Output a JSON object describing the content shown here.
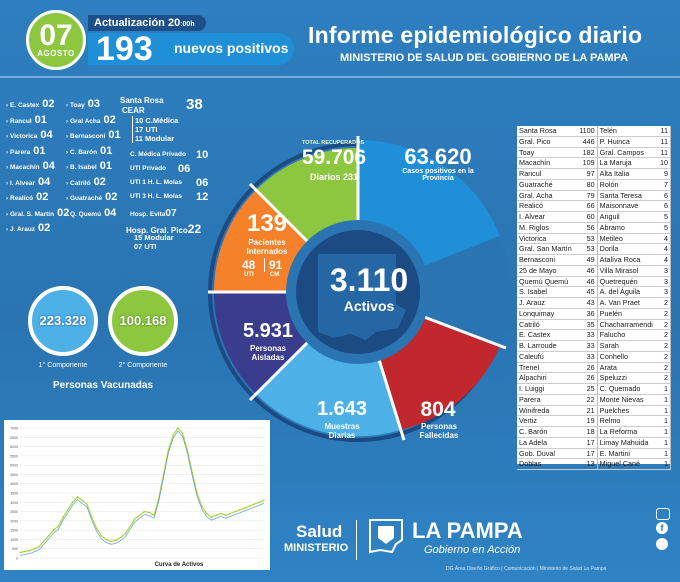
{
  "header": {
    "day": "07",
    "month": "AGOSTO",
    "update_label": "Actualización 20",
    "update_suffix": ":00h",
    "new_positives": "193",
    "new_positives_label": "nuevos positivos",
    "title": "Informe epidemiológico diario",
    "subtitle": "MINISTERIO DE SALUD DEL GOBIERNO DE LA PAMPA"
  },
  "left_list_col1": [
    {
      "name": "E. Castex",
      "value": "02"
    },
    {
      "name": "Rancul",
      "value": "01"
    },
    {
      "name": "Victorica",
      "value": "04"
    },
    {
      "name": "Parera",
      "value": "01"
    },
    {
      "name": "Macachín",
      "value": "04"
    },
    {
      "name": "I. Alvear",
      "value": "04"
    },
    {
      "name": "Realicó",
      "value": "02"
    },
    {
      "name": "Gral. S. Martín",
      "value": "02"
    },
    {
      "name": "J. Arauz",
      "value": "02"
    }
  ],
  "left_list_col2": [
    {
      "name": "Toay",
      "value": "03"
    },
    {
      "name": "Gral Acha",
      "value": "02"
    },
    {
      "name": "Bernasconi",
      "value": "01"
    },
    {
      "name": "C. Barón",
      "value": "01"
    },
    {
      "name": "B. Isabel",
      "value": "01"
    },
    {
      "name": "Catriló",
      "value": "02"
    },
    {
      "name": "Guatraché",
      "value": "02"
    },
    {
      "name": "Q. Quemú",
      "value": "04"
    }
  ],
  "hospitals": {
    "santa_rosa": "Santa Rosa",
    "cear": "CEAR",
    "cear_total": "38",
    "cear_lines": [
      "10 C.Médica",
      "17 UTI",
      "11 Modular"
    ],
    "privado_cm_label": "C. Médica Privado",
    "privado_cm": "10",
    "privado_uti_label": "UTI Privado",
    "privado_uti": "06",
    "molas1_label": "UTI 1 H. L. Molas",
    "molas1": "06",
    "molas3_label": "UTI 3 H. L. Molas",
    "molas3": "12",
    "evita_label": "Hosp. Evita",
    "evita": "07",
    "pico_label": "Hosp. Gral. Pico",
    "pico": "22",
    "pico_lines": [
      "15 Modular",
      "07 UTI"
    ]
  },
  "donut": {
    "recuperados_label": "TOTAL RECUPERADOS",
    "recuperados": "59.706",
    "diarios_label": "Diarios",
    "diarios": "231",
    "casos": "63.620",
    "casos_label": "Casos positivos en la Provincia",
    "internados": "139",
    "internados_label": "Pacientes Internados",
    "uti": "48",
    "uti_label": "UTI",
    "cm": "91",
    "cm_label": "CM",
    "activos": "3.110",
    "activos_label": "Activos",
    "aisladas": "5.931",
    "aisladas_label": "Personas Aisladas",
    "muestras": "1.643",
    "muestras_label": "Muestras Diarias",
    "fallecidas": "804",
    "fallecidas_label": "Personas Fallecidas",
    "colors": {
      "green": "#8dc63f",
      "blue": "#1f8fd8",
      "orange": "#f5822a",
      "purple": "#3a3c8c",
      "lightblue": "#4db1e8",
      "red": "#c0282d",
      "navy": "#1c4a83"
    }
  },
  "vaccinated": {
    "first": "223.328",
    "first_label": "1° Componente",
    "second": "100.168",
    "second_label": "2° Componente",
    "title": "Personas Vacunadas"
  },
  "table_left": [
    [
      "Santa Rosa",
      "1100"
    ],
    [
      "Gral. Pico",
      "446"
    ],
    [
      "Toay",
      "182"
    ],
    [
      "Macachín",
      "109"
    ],
    [
      "Rancul",
      "97"
    ],
    [
      "Guatraché",
      "80"
    ],
    [
      "Gral. Acha",
      "79"
    ],
    [
      "Realicó",
      "66"
    ],
    [
      "I. Alvear",
      "60"
    ],
    [
      "M. Riglos",
      "56"
    ],
    [
      "Victorica",
      "53"
    ],
    [
      "Gral. San Martín",
      "53"
    ],
    [
      "Bernasconi",
      "49"
    ],
    [
      "25 de Mayo",
      "46"
    ],
    [
      "Quemú Quemú",
      "46"
    ],
    [
      "S. Isabel",
      "45"
    ],
    [
      "J. Arauz",
      "43"
    ],
    [
      "Lonquimay",
      "36"
    ],
    [
      "Catriló",
      "35"
    ],
    [
      "E. Castex",
      "33"
    ],
    [
      "B. Larroude",
      "33"
    ],
    [
      "Caleufú",
      "33"
    ],
    [
      "Trenel",
      "26"
    ],
    [
      "Alpachiri",
      "26"
    ],
    [
      "I. Luiggi",
      "25"
    ],
    [
      "Parera",
      "22"
    ],
    [
      "Winifreda",
      "21"
    ],
    [
      "Vertiz",
      "19"
    ],
    [
      "C. Barón",
      "18"
    ],
    [
      "La Adela",
      "17"
    ],
    [
      "Gob. Duval",
      "17"
    ],
    [
      "Doblas",
      "13"
    ]
  ],
  "table_right": [
    [
      "Telén",
      "11"
    ],
    [
      "P. Huinca",
      "11"
    ],
    [
      "Gral. Campos",
      "11"
    ],
    [
      "La Maruja",
      "10"
    ],
    [
      "Alta Italia",
      "9"
    ],
    [
      "Rolón",
      "7"
    ],
    [
      "Santa Teresa",
      "6"
    ],
    [
      "Maisonnave",
      "6"
    ],
    [
      "Anguil",
      "5"
    ],
    [
      "Abramo",
      "5"
    ],
    [
      "Metileo",
      "4"
    ],
    [
      "Dorila",
      "4"
    ],
    [
      "Atalíva Roca",
      "4"
    ],
    [
      "Villa Mirasol",
      "3"
    ],
    [
      "Quetrequén",
      "3"
    ],
    [
      "A. del Águila",
      "3"
    ],
    [
      "A. Van Praet",
      "2"
    ],
    [
      "Puelén",
      "2"
    ],
    [
      "Chacharramendi",
      "2"
    ],
    [
      "Falucho",
      "2"
    ],
    [
      "Sarah",
      "2"
    ],
    [
      "Conhello",
      "2"
    ],
    [
      "Arata",
      "2"
    ],
    [
      "Speluzzi",
      "2"
    ],
    [
      "C. Quemado",
      "1"
    ],
    [
      "Monte Nievas",
      "1"
    ],
    [
      "Puelches",
      "1"
    ],
    [
      "Relmo",
      "1"
    ],
    [
      "La Reforma",
      "1"
    ],
    [
      "Limay Mahuida",
      "1"
    ],
    [
      "E. Martini",
      "1"
    ],
    [
      "Miguel Cané",
      "1"
    ]
  ],
  "chart_data": {
    "type": "line",
    "title": "Curva de Activos",
    "y_ticks": [
      "7000",
      "6500",
      "6000",
      "5500",
      "5000",
      "4500",
      "4000",
      "3500",
      "3000",
      "2500",
      "2000",
      "1500",
      "1000",
      "500",
      "0"
    ],
    "ylim": [
      0,
      7000
    ],
    "values": [
      300,
      350,
      400,
      500,
      600,
      900,
      1200,
      1500,
      1700,
      2200,
      2600,
      3000,
      3300,
      3100,
      2900,
      2200,
      1600,
      1200,
      1000,
      900,
      950,
      1100,
      1300,
      1700,
      2100,
      2300,
      2500,
      2450,
      2300,
      3200,
      4500,
      5800,
      6600,
      7000,
      6700,
      5800,
      4600,
      3500,
      2800,
      2400,
      2200,
      2300,
      2400,
      2300,
      2400,
      2500,
      2600,
      2700,
      2800,
      2900,
      3000,
      3110
    ]
  },
  "footer": {
    "salud": "Salud",
    "ministerio": "MINISTERIO",
    "la_pampa": "LA PAMPA",
    "gobierno": "Gobierno en Acción",
    "credits": "DG Área Diseño Gráfico | Comunicación | Ministerio de Salud La Pampa"
  }
}
